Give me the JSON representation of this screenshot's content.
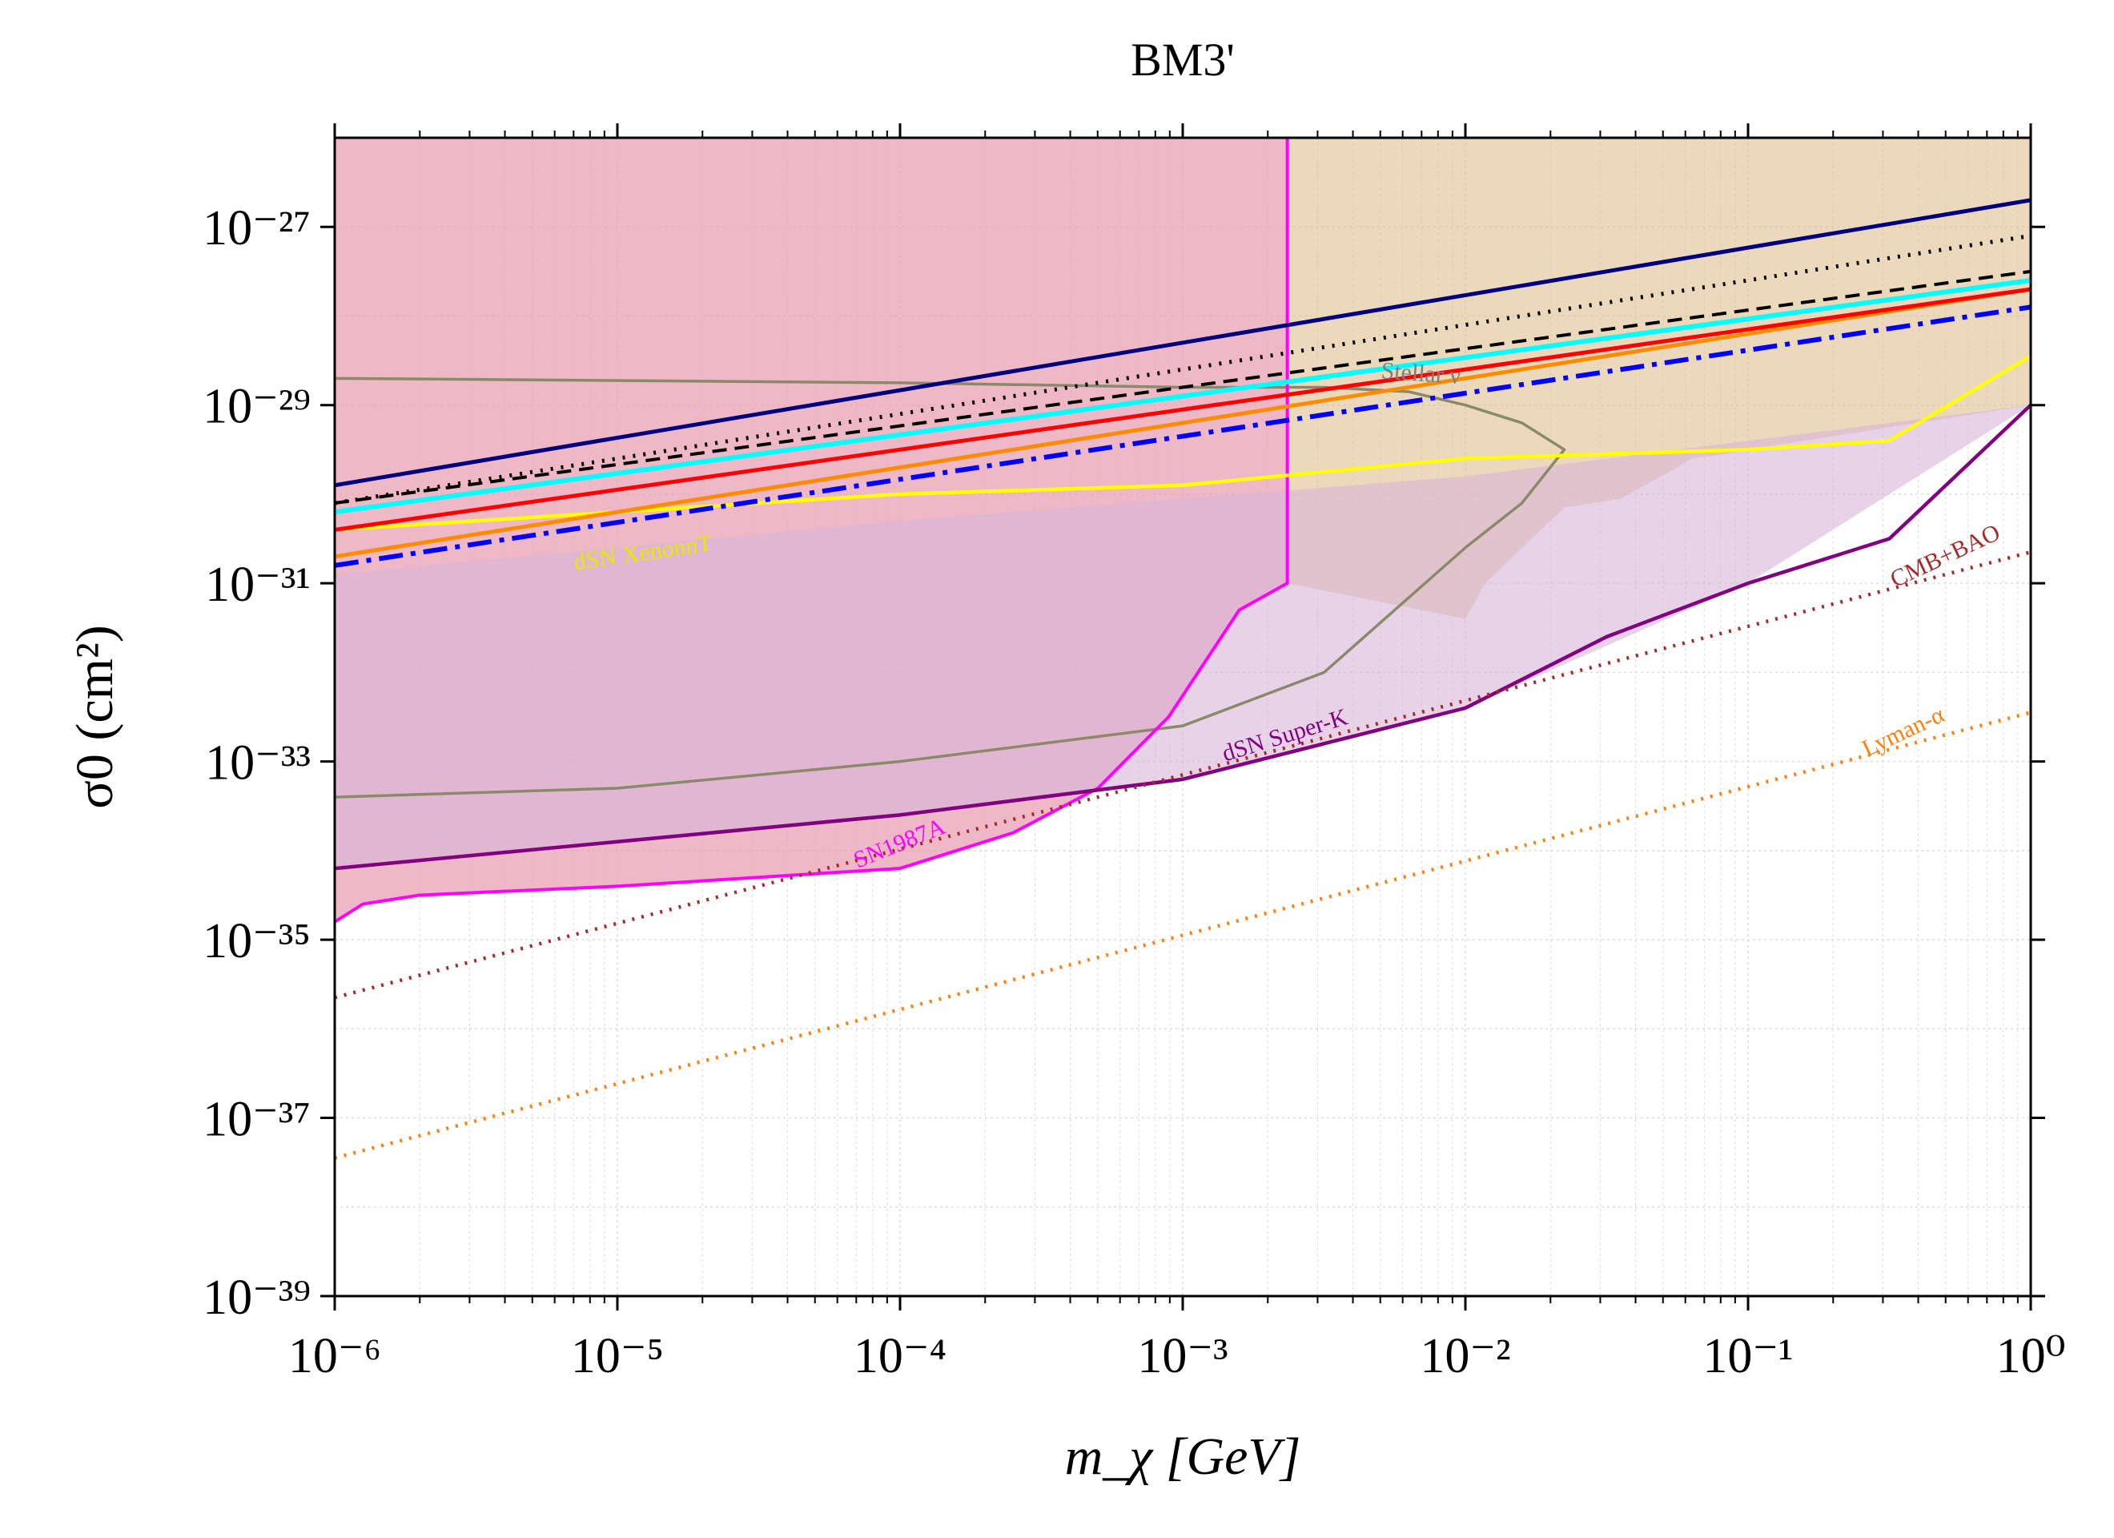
{
  "chart_data": {
    "type": "line",
    "title": "BM3'",
    "xlabel": "m_χ [GeV]",
    "ylabel": "σ0 (cm²)",
    "xscale": "log",
    "yscale": "log",
    "xlim_exp": [
      -6,
      0
    ],
    "ylim_exp": [
      -39,
      -26
    ],
    "x_tick_labels": [
      "10⁻⁶",
      "10⁻⁵",
      "10⁻⁴",
      "10⁻³",
      "10⁻²",
      "10⁻¹",
      "10⁰"
    ],
    "x_tick_exponents": [
      -6,
      -5,
      -4,
      -3,
      -2,
      -1,
      0
    ],
    "y_tick_labels": [
      "10⁻²⁷",
      "10⁻²⁹",
      "10⁻³¹",
      "10⁻³³",
      "10⁻³⁵",
      "10⁻³⁷",
      "10⁻³⁹"
    ],
    "y_tick_exponents": [
      -27,
      -29,
      -31,
      -33,
      -35,
      -37,
      -39
    ],
    "grid": true,
    "regions": [
      {
        "name": "sn1987a-region",
        "color": "#e8a0b4",
        "opacity": 0.75,
        "upper": [
          [
            -6,
            -26
          ],
          [
            -2.63,
            -26
          ]
        ],
        "lower": [
          [
            -6,
            -34.8
          ],
          [
            -5.9,
            -34.6
          ],
          [
            -5.7,
            -34.5
          ],
          [
            -5,
            -34.4
          ],
          [
            -4,
            -34.2
          ],
          [
            -3.6,
            -33.8
          ],
          [
            -3.3,
            -33.3
          ],
          [
            -3.05,
            -32.5
          ],
          [
            -2.8,
            -31.3
          ],
          [
            -2.63,
            -31.0
          ]
        ]
      },
      {
        "name": "stellar-region",
        "color": "#e0c090",
        "opacity": 0.6,
        "upper": [
          [
            -2.63,
            -26
          ],
          [
            0,
            -26
          ]
        ],
        "lower": [
          [
            -2.63,
            -31.0
          ],
          [
            -2.0,
            -31.4
          ],
          [
            -1.93,
            -31.0
          ],
          [
            -1.65,
            -30.15
          ],
          [
            -1.45,
            -30.05
          ],
          [
            -1.25,
            -29.7
          ],
          [
            -1.2,
            -29.6
          ],
          [
            -1.08,
            -29.55
          ],
          [
            -1,
            -29.5
          ],
          [
            0,
            -29.0
          ]
        ]
      },
      {
        "name": "dsn-superk-region",
        "color": "#d8b4d8",
        "opacity": 0.6,
        "upper": [
          [
            -6,
            -30.9
          ],
          [
            -4,
            -30.3
          ],
          [
            -2,
            -29.8
          ],
          [
            0,
            -29.0
          ]
        ],
        "lower": [
          [
            -6,
            -34.2
          ],
          [
            -4,
            -33.6
          ],
          [
            -3,
            -33.2
          ],
          [
            -2,
            -32.4
          ],
          [
            -1,
            -31.0
          ],
          [
            0,
            -29.0
          ]
        ]
      }
    ],
    "series": [
      {
        "name": "Stellar ν",
        "color": "#8a8a6a",
        "width": 3.5,
        "dash": "none",
        "points": [
          [
            -6,
            -28.7
          ],
          [
            -4,
            -28.75
          ],
          [
            -3,
            -28.8
          ],
          [
            -2.5,
            -28.8
          ],
          [
            -2.2,
            -28.85
          ],
          [
            -2.0,
            -29.0
          ],
          [
            -1.8,
            -29.2
          ],
          [
            -1.65,
            -29.5
          ],
          [
            -1.8,
            -30.1
          ],
          [
            -2.0,
            -30.6
          ],
          [
            -2.5,
            -32.0
          ],
          [
            -3.0,
            -32.6
          ],
          [
            -3.5,
            -32.8
          ],
          [
            -4,
            -33.0
          ],
          [
            -5,
            -33.3
          ],
          [
            -6,
            -33.4
          ]
        ]
      },
      {
        "name": "SN1987A",
        "color": "#ff00ff",
        "width": 4,
        "dash": "none",
        "points": [
          [
            -6,
            -34.8
          ],
          [
            -5.9,
            -34.6
          ],
          [
            -5.7,
            -34.5
          ],
          [
            -5,
            -34.4
          ],
          [
            -4,
            -34.2
          ],
          [
            -3.6,
            -33.8
          ],
          [
            -3.3,
            -33.3
          ],
          [
            -3.05,
            -32.5
          ],
          [
            -2.8,
            -31.3
          ],
          [
            -2.63,
            -31.0
          ],
          [
            -2.63,
            -26
          ]
        ]
      },
      {
        "name": "dSN Super-K",
        "color": "#800080",
        "width": 4.5,
        "dash": "none",
        "points": [
          [
            -6,
            -34.2
          ],
          [
            -5,
            -33.9
          ],
          [
            -4,
            -33.6
          ],
          [
            -3,
            -33.2
          ],
          [
            -2.5,
            -32.8
          ],
          [
            -2,
            -32.4
          ],
          [
            -1.5,
            -31.6
          ],
          [
            -1,
            -31.0
          ],
          [
            -0.5,
            -30.5
          ],
          [
            0,
            -29.0
          ]
        ]
      },
      {
        "name": "dSN XenonnT",
        "color": "#ffff00",
        "width": 4.5,
        "dash": "none",
        "points": [
          [
            -6,
            -30.4
          ],
          [
            -4,
            -30.0
          ],
          [
            -3,
            -29.9
          ],
          [
            -2,
            -29.6
          ],
          [
            -1,
            -29.5
          ],
          [
            -0.5,
            -29.4
          ],
          [
            0,
            -28.45
          ]
        ]
      },
      {
        "name": "CMB+BAO",
        "color": "#a52a2a",
        "width": 4.5,
        "dash": "3,9",
        "points": [
          [
            -6,
            -35.65
          ],
          [
            0,
            -30.65
          ]
        ]
      },
      {
        "name": "Lyman-α",
        "color": "#ff7f0e",
        "width": 4.5,
        "dash": "3,9",
        "points": [
          [
            -6,
            -37.45
          ],
          [
            0,
            -32.45
          ]
        ]
      },
      {
        "name": "navy-line",
        "color": "#00007f",
        "width": 5,
        "dash": "none",
        "points": [
          [
            -6,
            -29.9
          ],
          [
            0,
            -26.7
          ]
        ]
      },
      {
        "name": "black-dotted-line",
        "color": "#000000",
        "width": 5,
        "dash": "3,10",
        "points": [
          [
            -6,
            -30.1
          ],
          [
            0,
            -27.1
          ]
        ]
      },
      {
        "name": "black-dashed-line",
        "color": "#000000",
        "width": 4,
        "dash": "18,10",
        "points": [
          [
            -6,
            -30.1
          ],
          [
            0,
            -27.5
          ]
        ]
      },
      {
        "name": "cyan-line",
        "color": "#00ffff",
        "width": 6,
        "dash": "none",
        "points": [
          [
            -6,
            -30.2
          ],
          [
            0,
            -27.6
          ]
        ]
      },
      {
        "name": "orange-line",
        "color": "#ff8c00",
        "width": 5,
        "dash": "none",
        "points": [
          [
            -6,
            -30.7
          ],
          [
            0,
            -27.7
          ]
        ]
      },
      {
        "name": "red-line",
        "color": "#ff0000",
        "width": 5,
        "dash": "none",
        "points": [
          [
            -6,
            -30.4
          ],
          [
            0,
            -27.7
          ]
        ]
      },
      {
        "name": "blue-dashdot-line",
        "color": "#0000ff",
        "width": 6,
        "dash": "30,10,6,10",
        "points": [
          [
            -6,
            -30.8
          ],
          [
            0,
            -27.9
          ]
        ]
      }
    ],
    "annotations": [
      {
        "text": "Stellar ν",
        "color": "#7f7f7f",
        "x": -2.3,
        "y": -28.7,
        "rotation": 4,
        "size": 30
      },
      {
        "text": "dSN XenonnT",
        "color": "#e8e800",
        "x": -5.15,
        "y": -30.85,
        "rotation": -8,
        "size": 30
      },
      {
        "text": "dSN Super-K",
        "color": "#800080",
        "x": -2.85,
        "y": -33.0,
        "rotation": -17,
        "size": 30
      },
      {
        "text": "SN1987A",
        "color": "#ff00ff",
        "x": -4.15,
        "y": -34.2,
        "rotation": -22,
        "size": 30
      },
      {
        "text": "CMB+BAO",
        "color": "#a52a2a",
        "x": -0.48,
        "y": -31.05,
        "rotation": -25,
        "size": 30
      },
      {
        "text": "Lyman-α",
        "color": "#ff7f0e",
        "x": -0.58,
        "y": -32.95,
        "rotation": -25,
        "size": 30
      }
    ]
  }
}
